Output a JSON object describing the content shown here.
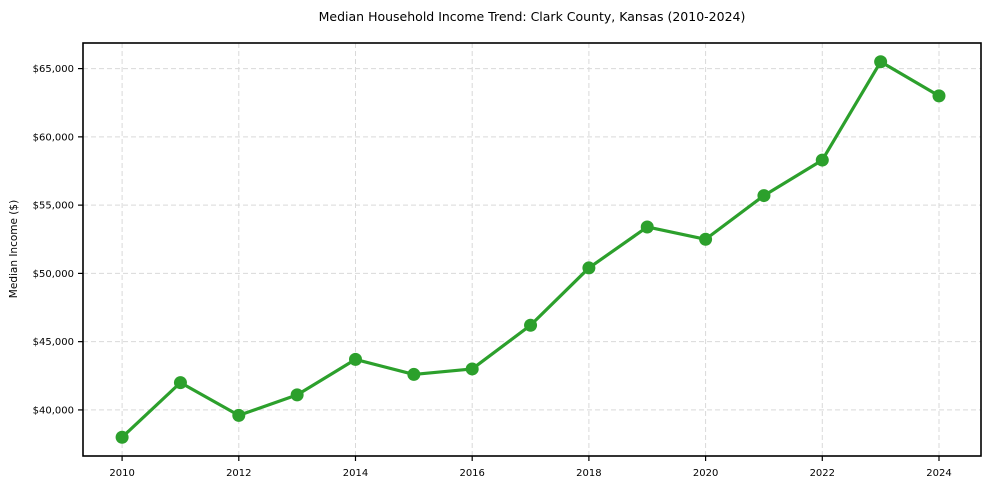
{
  "chart_data": {
    "type": "line",
    "title": "Median Household Income Trend: Clark County, Kansas (2010-2024)",
    "xlabel": "",
    "ylabel": "Median Income ($)",
    "x": [
      2010,
      2011,
      2012,
      2013,
      2014,
      2015,
      2016,
      2017,
      2018,
      2019,
      2020,
      2021,
      2022,
      2023,
      2024
    ],
    "series": [
      {
        "name": "Median Household Income",
        "values": [
          38000,
          42000,
          39600,
          41100,
          43700,
          42600,
          43000,
          46200,
          50400,
          53400,
          52500,
          55700,
          58300,
          65500,
          63000
        ]
      }
    ],
    "xticks": {
      "values": [
        2010,
        2012,
        2014,
        2016,
        2018,
        2020,
        2022,
        2024
      ],
      "labels": [
        "2010",
        "2012",
        "2014",
        "2016",
        "2018",
        "2020",
        "2022",
        "2024"
      ]
    },
    "yticks": {
      "values": [
        40000,
        45000,
        50000,
        55000,
        60000,
        65000
      ],
      "labels": [
        "$40,000",
        "$45,000",
        "$50,000",
        "$55,000",
        "$60,000",
        "$65,000"
      ]
    },
    "xlim": [
      2009.33,
      2024.72
    ],
    "ylim": [
      36625,
      66875
    ],
    "grid": true,
    "legend_position": "none",
    "line_color": "#2ca02c",
    "marker_color": "#2ca02c",
    "grid_color": "#d9d9d9",
    "spine_color": "#000000",
    "tick_color": "#000000",
    "background": "#ffffff"
  }
}
